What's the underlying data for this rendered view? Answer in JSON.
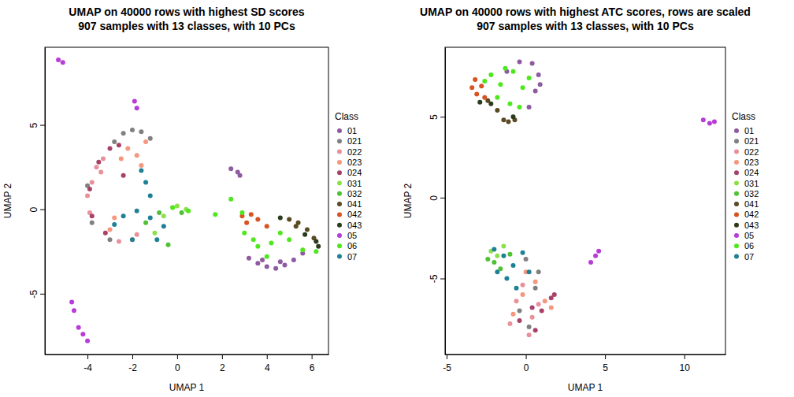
{
  "chart_data": [
    {
      "type": "scatter",
      "title": "UMAP on 40000 rows with highest SD scores",
      "subtitle": "907 samples with 13 classes, with 10 PCs",
      "x_label": "UMAP 1",
      "y_label": "UMAP 2",
      "legend_title": "Class",
      "legend": "right",
      "marker": "circle",
      "xlim": [
        -5.9,
        6.75
      ],
      "ylim": [
        -8.6,
        9.6
      ],
      "xticks": [
        -4,
        -2,
        0,
        2,
        4,
        6
      ],
      "yticks": [
        -5,
        0,
        5
      ],
      "series": [
        {
          "name": "01",
          "color": "#8e5ba0",
          "x": [
            2.4,
            2.8,
            3.2,
            3.6,
            4.0,
            4.4,
            4.8,
            5.2,
            3.8,
            4.6,
            2.7,
            5.6
          ],
          "y": [
            2.4,
            2.0,
            -2.9,
            -3.2,
            -3.4,
            -3.5,
            -3.3,
            -3.0,
            -3.0,
            -3.1,
            2.2,
            -2.6
          ]
        },
        {
          "name": "021",
          "color": "#808080",
          "x": [
            -2.4,
            -2.0,
            -1.6,
            -3.8,
            -3.0,
            -4.0,
            -1.2,
            -2.8
          ],
          "y": [
            4.5,
            4.7,
            4.6,
            -0.8,
            -1.8,
            1.4,
            4.2,
            4.0
          ]
        },
        {
          "name": "022",
          "color": "#e8919b",
          "x": [
            -4.0,
            -3.8,
            -3.6,
            -3.3,
            -2.6,
            -1.8,
            -3.9,
            -3.4
          ],
          "y": [
            0.8,
            1.6,
            2.5,
            3.0,
            -1.9,
            -1.5,
            -0.2,
            2.2
          ]
        },
        {
          "name": "023",
          "color": "#f5977d",
          "x": [
            -2.2,
            -1.8,
            -1.4,
            -2.5,
            -3.0,
            -2.0,
            -1.6,
            -2.8
          ],
          "y": [
            3.6,
            3.2,
            4.0,
            3.0,
            -1.2,
            -1.8,
            2.6,
            -0.5
          ]
        },
        {
          "name": "024",
          "color": "#a8416a",
          "x": [
            -3.8,
            -3.5,
            -3.0,
            -2.6,
            -3.9,
            -3.2,
            -2.4
          ],
          "y": [
            -0.4,
            2.8,
            3.6,
            3.8,
            1.2,
            -1.4,
            2.0
          ]
        },
        {
          "name": "031",
          "color": "#8ee04b",
          "x": [
            -0.6,
            -0.2,
            0.0,
            -1.0,
            0.4
          ],
          "y": [
            -0.4,
            0.1,
            0.2,
            -1.4,
            0.0
          ]
        },
        {
          "name": "032",
          "color": "#4ec234",
          "x": [
            -1.4,
            -0.8,
            0.2,
            -0.4
          ],
          "y": [
            -0.8,
            -0.2,
            -0.2,
            -2.1
          ]
        },
        {
          "name": "041",
          "color": "#5a4a22",
          "x": [
            5.0,
            5.4,
            5.8,
            6.1,
            5.3
          ],
          "y": [
            -0.6,
            -0.8,
            -1.2,
            -1.7,
            -1.0
          ]
        },
        {
          "name": "042",
          "color": "#d8531f",
          "x": [
            2.9,
            3.3,
            3.6,
            4.0,
            3.1
          ],
          "y": [
            -0.4,
            -0.3,
            -0.6,
            -1.0,
            -0.8
          ]
        },
        {
          "name": "043",
          "color": "#2d3b1d",
          "x": [
            5.7,
            6.2,
            4.6,
            6.3
          ],
          "y": [
            -1.5,
            -1.9,
            -0.5,
            -2.2
          ]
        },
        {
          "name": "05",
          "color": "#b73cd8",
          "x": [
            -5.3,
            -5.1,
            -1.9,
            -1.8,
            -4.7,
            -4.6,
            -4.4,
            -4.2,
            -4.0
          ],
          "y": [
            8.85,
            8.7,
            6.4,
            6.0,
            -5.5,
            -6.0,
            -7.0,
            -7.4,
            -7.8
          ]
        },
        {
          "name": "06",
          "color": "#4fe71d",
          "x": [
            1.7,
            2.4,
            3.0,
            3.6,
            4.2,
            5.0,
            5.6,
            6.2,
            4.6,
            3.4,
            -0.2,
            0.5,
            2.9,
            4.0
          ],
          "y": [
            -0.3,
            0.6,
            -1.4,
            -2.2,
            -2.0,
            -1.8,
            -2.4,
            -2.5,
            -1.4,
            -1.8,
            0.1,
            -0.1,
            -0.2,
            -2.8
          ]
        },
        {
          "name": "07",
          "color": "#1f8195",
          "x": [
            -2.4,
            -1.8,
            -1.2,
            -0.6,
            -2.0,
            -1.4,
            -1.6,
            -2.8,
            -0.9,
            -1.2
          ],
          "y": [
            -0.4,
            -0.1,
            -0.5,
            -1.0,
            -1.8,
            1.6,
            2.3,
            -0.9,
            -1.8,
            0.8
          ]
        }
      ]
    },
    {
      "type": "scatter",
      "title": "UMAP on 40000 rows with highest ATC scores, rows are scaled",
      "subtitle": "907 samples with 13 classes, with 10 PCs",
      "x_label": "UMAP 1",
      "y_label": "UMAP 2",
      "legend_title": "Class",
      "legend": "right",
      "marker": "circle",
      "xlim": [
        -5.1,
        12.6
      ],
      "ylim": [
        -9.7,
        9.3
      ],
      "xticks": [
        -5,
        0,
        5,
        10
      ],
      "yticks": [
        -5,
        0,
        5
      ],
      "series": [
        {
          "name": "01",
          "color": "#8e5ba0",
          "x": [
            0.4,
            0.8,
            0.6,
            -0.4,
            0.2,
            0.9,
            -1.2
          ],
          "y": [
            8.3,
            7.6,
            6.6,
            8.4,
            5.6,
            7.0,
            7.8
          ]
        },
        {
          "name": "021",
          "color": "#808080",
          "x": [
            0.0,
            0.6,
            -0.4,
            0.8,
            0.2
          ],
          "y": [
            -3.8,
            -5.6,
            -7.0,
            -4.6,
            -8.0
          ]
        },
        {
          "name": "022",
          "color": "#e8919b",
          "x": [
            -0.6,
            0.4,
            -1.0,
            0.2,
            0.8,
            -0.2
          ],
          "y": [
            -6.4,
            -7.4,
            -7.8,
            -8.5,
            -6.6,
            -5.4
          ]
        },
        {
          "name": "023",
          "color": "#f5977d",
          "x": [
            -0.2,
            0.6,
            1.2,
            -0.8,
            1.6,
            0.0
          ],
          "y": [
            -6.0,
            -5.2,
            -6.4,
            -7.2,
            -6.8,
            -4.6
          ]
        },
        {
          "name": "024",
          "color": "#a8416a",
          "x": [
            0.4,
            1.0,
            1.6,
            -0.4,
            0.6,
            1.8
          ],
          "y": [
            -6.8,
            -7.0,
            -6.2,
            -7.6,
            -8.2,
            -6.0
          ]
        },
        {
          "name": "031",
          "color": "#8ee04b",
          "x": [
            -2.2,
            -1.8,
            -1.4
          ],
          "y": [
            -3.3,
            -3.6,
            -3.0
          ]
        },
        {
          "name": "032",
          "color": "#4ec234",
          "x": [
            -2.4,
            -2.0,
            -1.0,
            -1.6
          ],
          "y": [
            -3.8,
            -4.0,
            -3.5,
            -4.4
          ]
        },
        {
          "name": "041",
          "color": "#5a4a22",
          "x": [
            -1.4,
            -1.1,
            -0.7,
            -2.4,
            -1.8
          ],
          "y": [
            4.8,
            4.7,
            4.8,
            6.0,
            5.4
          ]
        },
        {
          "name": "042",
          "color": "#d8531f",
          "x": [
            -3.4,
            -3.1,
            -2.8,
            -3.2,
            -2.6
          ],
          "y": [
            6.8,
            6.4,
            6.9,
            7.3,
            6.2
          ]
        },
        {
          "name": "043",
          "color": "#2d3b1d",
          "x": [
            -2.9,
            -0.8,
            -2.2
          ],
          "y": [
            5.9,
            5.0,
            5.8
          ]
        },
        {
          "name": "05",
          "color": "#b73cd8",
          "x": [
            11.2,
            11.6,
            11.9,
            4.1,
            4.4,
            4.6
          ],
          "y": [
            4.8,
            4.6,
            4.7,
            -4.0,
            -3.6,
            -3.3
          ]
        },
        {
          "name": "06",
          "color": "#4fe71d",
          "x": [
            -2.2,
            -1.6,
            -0.8,
            -0.2,
            -1.0,
            -1.8,
            -0.4,
            -2.6,
            0.2,
            -1.3
          ],
          "y": [
            7.6,
            7.0,
            7.8,
            6.8,
            5.8,
            6.2,
            5.6,
            7.2,
            7.4,
            8.0
          ]
        },
        {
          "name": "07",
          "color": "#1f8195",
          "x": [
            -2.0,
            -1.4,
            -0.8,
            -0.2,
            -1.2,
            0.2,
            -1.8,
            -0.6
          ],
          "y": [
            -3.2,
            -3.6,
            -4.2,
            -3.4,
            -5.0,
            -4.6,
            -4.6,
            -5.6
          ]
        }
      ]
    }
  ]
}
